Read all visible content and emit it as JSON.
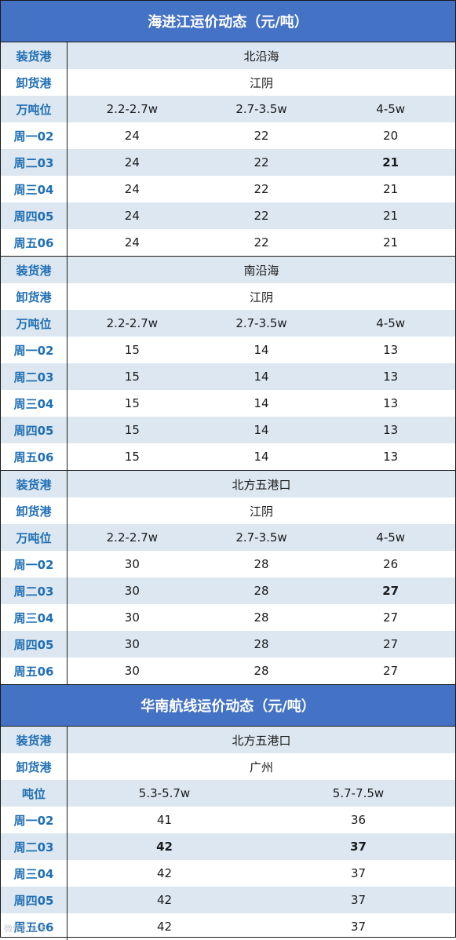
{
  "sections": [
    {
      "title": "海进江运价动态（元/吨）",
      "blocks": [
        {
          "rows": [
            {
              "label": "装货港",
              "cells": [
                "北沿海"
              ],
              "alt": true
            },
            {
              "label": "卸货港",
              "cells": [
                "江阴"
              ],
              "alt": false
            },
            {
              "label": "万吨位",
              "cells": [
                "2.2-2.7w",
                "2.7-3.5w",
                "4-5w"
              ],
              "alt": true
            },
            {
              "label": "周一02",
              "cells": [
                "24",
                "22",
                "20"
              ],
              "alt": false
            },
            {
              "label": "周二03",
              "cells": [
                "24",
                "22",
                "21"
              ],
              "alt": true,
              "bold": [
                2
              ]
            },
            {
              "label": "周三04",
              "cells": [
                "24",
                "22",
                "21"
              ],
              "alt": false
            },
            {
              "label": "周四05",
              "cells": [
                "24",
                "22",
                "21"
              ],
              "alt": true
            },
            {
              "label": "周五06",
              "cells": [
                "24",
                "22",
                "21"
              ],
              "alt": false
            }
          ]
        },
        {
          "rows": [
            {
              "label": "装货港",
              "cells": [
                "南沿海"
              ],
              "alt": true
            },
            {
              "label": "卸货港",
              "cells": [
                "江阴"
              ],
              "alt": false
            },
            {
              "label": "万吨位",
              "cells": [
                "2.2-2.7w",
                "2.7-3.5w",
                "4-5w"
              ],
              "alt": true
            },
            {
              "label": "周一02",
              "cells": [
                "15",
                "14",
                "13"
              ],
              "alt": false
            },
            {
              "label": "周二03",
              "cells": [
                "15",
                "14",
                "13"
              ],
              "alt": true
            },
            {
              "label": "周三04",
              "cells": [
                "15",
                "14",
                "13"
              ],
              "alt": false
            },
            {
              "label": "周四05",
              "cells": [
                "15",
                "14",
                "13"
              ],
              "alt": true
            },
            {
              "label": "周五06",
              "cells": [
                "15",
                "14",
                "13"
              ],
              "alt": false
            }
          ]
        },
        {
          "rows": [
            {
              "label": "装货港",
              "cells": [
                "北方五港口"
              ],
              "alt": true
            },
            {
              "label": "卸货港",
              "cells": [
                "江阴"
              ],
              "alt": false
            },
            {
              "label": "万吨位",
              "cells": [
                "2.2-2.7w",
                "2.7-3.5w",
                "4-5w"
              ],
              "alt": true
            },
            {
              "label": "周一02",
              "cells": [
                "30",
                "28",
                "26"
              ],
              "alt": false
            },
            {
              "label": "周二03",
              "cells": [
                "30",
                "28",
                "27"
              ],
              "alt": true,
              "bold": [
                2
              ]
            },
            {
              "label": "周三04",
              "cells": [
                "30",
                "28",
                "27"
              ],
              "alt": false
            },
            {
              "label": "周四05",
              "cells": [
                "30",
                "28",
                "27"
              ],
              "alt": true
            },
            {
              "label": "周五06",
              "cells": [
                "30",
                "28",
                "27"
              ],
              "alt": false
            }
          ]
        }
      ]
    },
    {
      "title": "华南航线运价动态（元/吨）",
      "blocks": [
        {
          "rows": [
            {
              "label": "装货港",
              "cells": [
                "北方五港口"
              ],
              "alt": true
            },
            {
              "label": "卸货港",
              "cells": [
                "广州"
              ],
              "alt": false
            },
            {
              "label": "吨位",
              "cells": [
                "5.3-5.7w",
                "5.7-7.5w"
              ],
              "alt": true
            },
            {
              "label": "周一02",
              "cells": [
                "41",
                "36"
              ],
              "alt": false
            },
            {
              "label": "周二03",
              "cells": [
                "42",
                "37"
              ],
              "alt": true,
              "bold": [
                0,
                1
              ]
            },
            {
              "label": "周三04",
              "cells": [
                "42",
                "37"
              ],
              "alt": false
            },
            {
              "label": "周四05",
              "cells": [
                "42",
                "37"
              ],
              "alt": true
            },
            {
              "label": "周五06",
              "cells": [
                "42",
                "37"
              ],
              "alt": false
            }
          ]
        }
      ]
    }
  ],
  "watermark": "微信公众号"
}
